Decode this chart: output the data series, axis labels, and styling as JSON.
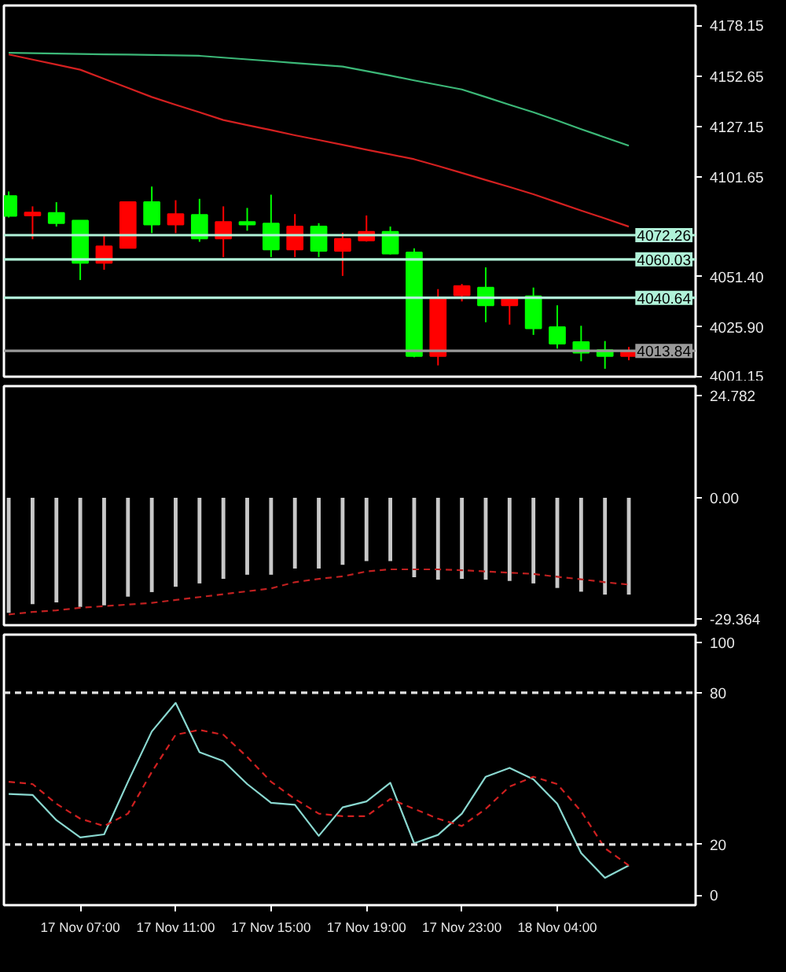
{
  "chart_data": [
    {
      "type": "candlestick",
      "categories": [
        null,
        null,
        null,
        null,
        null,
        null,
        null,
        null,
        null,
        null,
        null,
        null,
        null,
        null,
        null,
        null,
        null,
        null,
        null,
        null,
        null,
        null,
        null,
        null,
        null,
        null,
        null
      ],
      "ohlc": [
        [
          4092.0,
          4094.3,
          4081.2,
          4082.0
        ],
        [
          4082.2,
          4086.8,
          4070.2,
          4083.7
        ],
        [
          4083.5,
          4088.9,
          4076.6,
          4078.3
        ],
        [
          4079.6,
          4079.6,
          4049.6,
          4058.3
        ],
        [
          4058.3,
          4072.2,
          4054.8,
          4066.6
        ],
        [
          4065.8,
          4088.9,
          4065.8,
          4088.9
        ],
        [
          4088.9,
          4096.8,
          4073.3,
          4077.6
        ],
        [
          4077.6,
          4089.9,
          4073.3,
          4082.9
        ],
        [
          4082.5,
          4090.6,
          4068.9,
          4070.6
        ],
        [
          4070.6,
          4086.8,
          4061.2,
          4078.9
        ],
        [
          4078.9,
          4086.0,
          4074.5,
          4077.6
        ],
        [
          4078.1,
          4092.7,
          4061.2,
          4065.0
        ],
        [
          4065.0,
          4082.9,
          4061.2,
          4076.6
        ],
        [
          4076.6,
          4078.3,
          4061.2,
          4064.3
        ],
        [
          4064.3,
          4073.5,
          4051.7,
          4070.4
        ],
        [
          4069.6,
          4082.2,
          4069.0,
          4074.0
        ],
        [
          4074.0,
          4076.6,
          4062.5,
          4062.9
        ],
        [
          4063.5,
          4065.6,
          4010.6,
          4011.2
        ],
        [
          4011.2,
          4045.0,
          4006.5,
          4040.4
        ],
        [
          4041.9,
          4047.6,
          4038.8,
          4046.6
        ],
        [
          4045.8,
          4056.0,
          4028.3,
          4036.8
        ],
        [
          4036.8,
          4040.4,
          4027.1,
          4040.2
        ],
        [
          4041.4,
          4045.8,
          4021.9,
          4025.2
        ],
        [
          4025.8,
          4036.8,
          4015.0,
          4017.5
        ],
        [
          4018.3,
          4026.5,
          4008.6,
          4012.9
        ],
        [
          4014.2,
          4018.8,
          4004.8,
          4011.2
        ],
        [
          4011.2,
          4015.8,
          4009.1,
          4013.84
        ]
      ],
      "colors": [
        "#00ff00",
        "#ff0000",
        "#00ff00",
        "#00ff00",
        "#ff0000",
        "#ff0000",
        "#00ff00",
        "#ff0000",
        "#00ff00",
        "#ff0000",
        "#00ff00",
        "#00ff00",
        "#ff0000",
        "#00ff00",
        "#ff0000",
        "#ff0000",
        "#00ff00",
        "#00ff00",
        "#ff0000",
        "#ff0000",
        "#00ff00",
        "#ff0000",
        "#00ff00",
        "#00ff00",
        "#00ff00",
        "#00ff00",
        "#ff0000"
      ],
      "series": [
        {
          "type": "line",
          "color": "#3cb878",
          "values": [
            4164.3,
            4164.1,
            4163.9,
            4163.7,
            4163.5,
            4163.4,
            4163.2,
            4163.0,
            4162.8,
            4161.9,
            4161.0,
            4160.1,
            4159.2,
            4158.3,
            4157.4,
            4155.1,
            4152.8,
            4150.4,
            4148.1,
            4145.8,
            4142.0,
            4138.1,
            4134.3,
            4130.1,
            4125.8,
            4121.6,
            4117.4
          ]
        },
        {
          "type": "line",
          "color": "#d42020",
          "values": [
            4163.5,
            4160.9,
            4158.4,
            4155.8,
            4151.2,
            4146.6,
            4142.0,
            4138.1,
            4134.3,
            4130.4,
            4127.8,
            4125.3,
            4122.7,
            4120.3,
            4117.9,
            4115.4,
            4113.0,
            4110.6,
            4107.2,
            4103.7,
            4100.1,
            4096.6,
            4092.9,
            4088.8,
            4084.7,
            4080.7,
            4076.6
          ]
        }
      ],
      "ref_lines": [
        {
          "axis": "y",
          "value": 4072.26,
          "label": "4072.26",
          "color": "#b0f2d8"
        },
        {
          "axis": "y",
          "value": 4060.03,
          "label": "4060.03",
          "color": "#b0f2d8"
        },
        {
          "axis": "y",
          "value": 4040.64,
          "label": "4040.64",
          "color": "#b0f2d8"
        },
        {
          "axis": "y",
          "value": 4013.84,
          "label": "4013.84",
          "color": "#9a9a9a"
        }
      ],
      "ylim": [
        4000.8,
        4188.2
      ],
      "yticks": [
        4178.15,
        4152.65,
        4127.15,
        4101.65,
        {
          "value": 4051.4,
          "label": "4051.40"
        },
        {
          "value": 4025.9,
          "label": "4025.90"
        },
        4001.15
      ],
      "tick_labels": "y"
    },
    {
      "type": "bar",
      "categories": [
        null,
        null,
        null,
        null,
        null,
        null,
        null,
        null,
        null,
        null,
        null,
        null,
        null,
        null,
        null,
        null,
        null,
        null,
        null,
        null,
        null,
        null,
        null,
        null,
        null,
        null,
        null
      ],
      "series": [
        {
          "type": "bar",
          "color": "#c8c8c8",
          "values": [
            -27.8,
            -25.7,
            -25.3,
            -26.4,
            -26.0,
            -23.9,
            -22.8,
            -21.5,
            -20.7,
            -19.6,
            -18.6,
            -18.6,
            -17.1,
            -17.1,
            -16.2,
            -15.3,
            -15.3,
            -19.2,
            -19.8,
            -19.6,
            -19.8,
            -20.1,
            -20.7,
            -21.8,
            -22.7,
            -23.4,
            -23.4
          ]
        },
        {
          "type": "line",
          "color": "#c02020",
          "line_style": "dashed",
          "values": [
            -28.2,
            -27.6,
            -27.2,
            -26.6,
            -26.2,
            -25.8,
            -25.4,
            -24.7,
            -24.0,
            -23.3,
            -22.6,
            -21.9,
            -20.4,
            -19.6,
            -19.0,
            -17.8,
            -17.3,
            -17.3,
            -17.3,
            -17.5,
            -17.8,
            -18.1,
            -18.4,
            -19.1,
            -19.7,
            -20.4,
            -21.0
          ]
        }
      ],
      "ylim": [
        -30.8,
        27.0
      ],
      "yticks": [
        24.782,
        {
          "value": 0,
          "label": "0.00"
        },
        -29.364
      ],
      "tick_labels": "y"
    },
    {
      "type": "line",
      "categories": [
        null,
        null,
        null,
        "17 Nov 07:00",
        null,
        null,
        null,
        "17 Nov 11:00",
        null,
        null,
        null,
        "17 Nov 15:00",
        null,
        null,
        null,
        "17 Nov 19:00",
        null,
        null,
        null,
        "17 Nov 23:00",
        null,
        null,
        null,
        "18 Nov 04:00",
        null,
        null,
        null
      ],
      "series": [
        {
          "color": "#8ad8d0",
          "line_style": "solid",
          "values": [
            40.0,
            39.6,
            29.6,
            22.8,
            24.0,
            44.8,
            64.7,
            76.0,
            56.5,
            53.0,
            43.9,
            36.5,
            35.7,
            23.4,
            34.7,
            37.0,
            44.4,
            20.5,
            23.8,
            32.2,
            46.8,
            50.3,
            45.8,
            36.1,
            16.6,
            6.8,
            11.7
          ]
        },
        {
          "color": "#d02020",
          "line_style": "dashed",
          "values": [
            44.8,
            43.9,
            36.1,
            30.2,
            27.3,
            32.2,
            48.7,
            63.4,
            65.3,
            63.4,
            54.6,
            44.8,
            38.0,
            32.2,
            31.2,
            31.2,
            38.0,
            34.1,
            30.2,
            27.3,
            34.1,
            42.9,
            46.8,
            43.9,
            33.1,
            18.5,
            11.7
          ]
        }
      ],
      "ref_lines": [
        {
          "axis": "y",
          "value": 80,
          "color": "#e0e0e0",
          "line_style": "dashed"
        },
        {
          "axis": "y",
          "value": 20,
          "color": "#e0e0e0",
          "line_style": "dashed"
        }
      ],
      "ylim": [
        -4,
        103
      ],
      "yticks": [
        0,
        20,
        80,
        100
      ]
    }
  ]
}
